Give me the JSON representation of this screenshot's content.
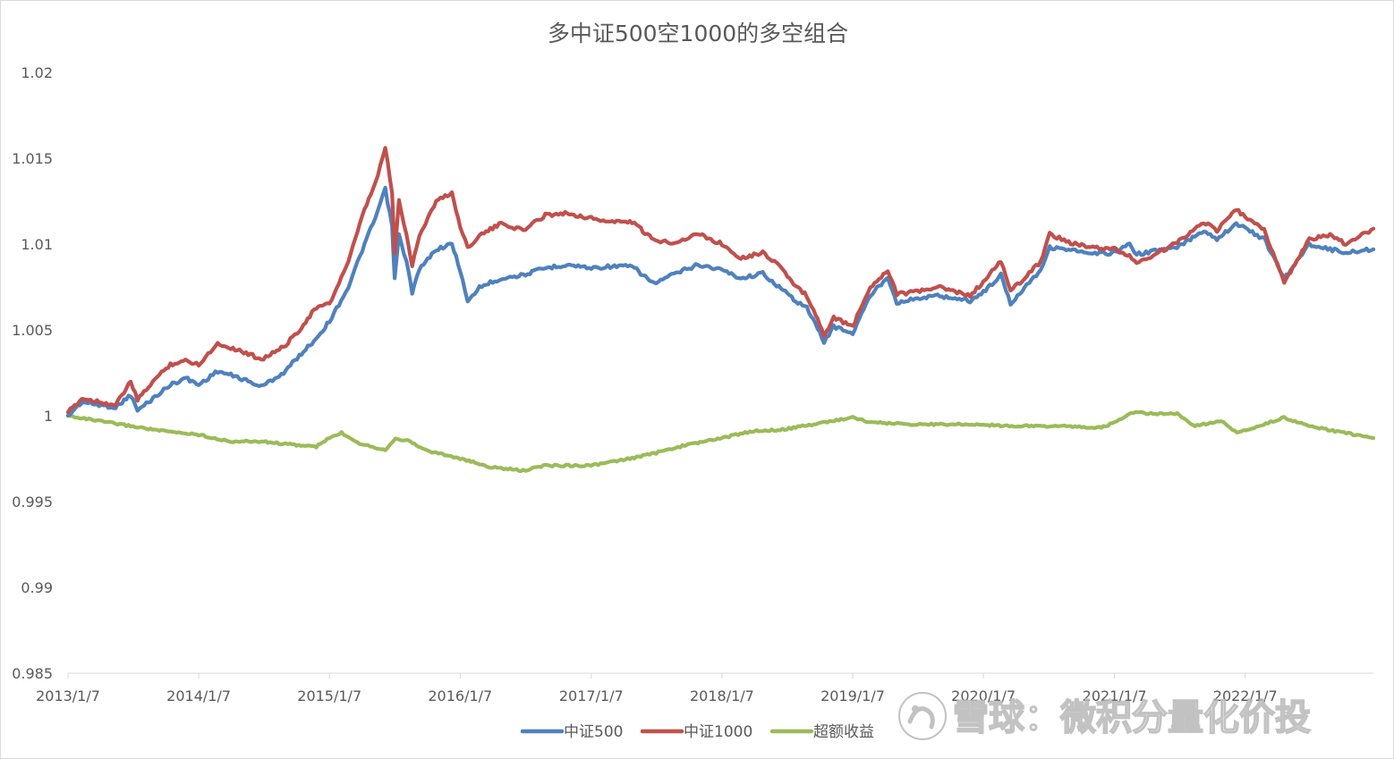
{
  "chart_data": {
    "type": "line",
    "title": "多中证500空1000的多空组合",
    "xlabel": "",
    "ylabel": "",
    "ylim": [
      0.985,
      1.02
    ],
    "yticks": [
      "1.02",
      "1.015",
      "1.01",
      "1.005",
      "1",
      "0.995",
      "0.99",
      "0.985"
    ],
    "xlim": [
      "2013-01-07",
      "2022-12-31"
    ],
    "xticks": [
      "2013/1/7",
      "2014/1/7",
      "2015/1/7",
      "2016/1/7",
      "2017/1/7",
      "2018/1/7",
      "2019/1/7",
      "2020/1/7",
      "2021/1/7",
      "2022/1/7"
    ],
    "grid": false,
    "legend_position": "bottom",
    "series": [
      {
        "name": "中证500",
        "color": "#4f81bd",
        "points": [
          [
            "2013-01-07",
            1.0
          ],
          [
            "2013-02-15",
            1.0008
          ],
          [
            "2013-04-10",
            1.0006
          ],
          [
            "2013-05-20",
            1.0005
          ],
          [
            "2013-07-01",
            1.0012
          ],
          [
            "2013-07-20",
            1.0003
          ],
          [
            "2013-09-01",
            1.001
          ],
          [
            "2013-10-20",
            1.0018
          ],
          [
            "2013-12-01",
            1.0022
          ],
          [
            "2014-01-07",
            1.0018
          ],
          [
            "2014-03-01",
            1.0026
          ],
          [
            "2014-05-01",
            1.0022
          ],
          [
            "2014-07-01",
            1.0017
          ],
          [
            "2014-09-01",
            1.0025
          ],
          [
            "2014-10-15",
            1.0035
          ],
          [
            "2014-12-01",
            1.0045
          ],
          [
            "2015-01-07",
            1.0055
          ],
          [
            "2015-03-01",
            1.0075
          ],
          [
            "2015-04-15",
            1.01
          ],
          [
            "2015-05-15",
            1.0115
          ],
          [
            "2015-06-12",
            1.0132
          ],
          [
            "2015-07-01",
            1.011
          ],
          [
            "2015-07-08",
            1.008
          ],
          [
            "2015-07-20",
            1.0105
          ],
          [
            "2015-08-10",
            1.009
          ],
          [
            "2015-08-26",
            1.0072
          ],
          [
            "2015-09-15",
            1.0085
          ],
          [
            "2015-11-01",
            1.0097
          ],
          [
            "2015-12-15",
            1.01
          ],
          [
            "2016-01-07",
            1.0085
          ],
          [
            "2016-01-28",
            1.0066
          ],
          [
            "2016-03-01",
            1.0075
          ],
          [
            "2016-05-01",
            1.008
          ],
          [
            "2016-07-01",
            1.0082
          ],
          [
            "2016-09-01",
            1.0086
          ],
          [
            "2016-11-01",
            1.0088
          ],
          [
            "2017-01-07",
            1.0086
          ],
          [
            "2017-03-01",
            1.0087
          ],
          [
            "2017-05-01",
            1.0087
          ],
          [
            "2017-07-01",
            1.0077
          ],
          [
            "2017-09-01",
            1.0083
          ],
          [
            "2017-11-01",
            1.0088
          ],
          [
            "2018-01-07",
            1.0085
          ],
          [
            "2018-03-01",
            1.008
          ],
          [
            "2018-05-01",
            1.0083
          ],
          [
            "2018-06-15",
            1.0075
          ],
          [
            "2018-08-01",
            1.0067
          ],
          [
            "2018-09-01",
            1.0063
          ],
          [
            "2018-10-19",
            1.0043
          ],
          [
            "2018-11-15",
            1.0052
          ],
          [
            "2019-01-07",
            1.0048
          ],
          [
            "2019-02-25",
            1.007
          ],
          [
            "2019-04-15",
            1.0081
          ],
          [
            "2019-05-10",
            1.0066
          ],
          [
            "2019-07-01",
            1.0068
          ],
          [
            "2019-09-01",
            1.007
          ],
          [
            "2019-12-01",
            1.0067
          ],
          [
            "2020-01-07",
            1.0072
          ],
          [
            "2020-02-25",
            1.0082
          ],
          [
            "2020-03-23",
            1.0065
          ],
          [
            "2020-05-01",
            1.0075
          ],
          [
            "2020-06-15",
            1.0085
          ],
          [
            "2020-07-10",
            1.0098
          ],
          [
            "2020-09-01",
            1.0097
          ],
          [
            "2020-11-01",
            1.0094
          ],
          [
            "2021-01-07",
            1.0095
          ],
          [
            "2021-02-18",
            1.01
          ],
          [
            "2021-03-10",
            1.0094
          ],
          [
            "2021-05-01",
            1.0096
          ],
          [
            "2021-07-01",
            1.0098
          ],
          [
            "2021-09-13",
            1.0108
          ],
          [
            "2021-10-20",
            1.0103
          ],
          [
            "2021-12-13",
            1.0112
          ],
          [
            "2022-01-07",
            1.0109
          ],
          [
            "2022-03-01",
            1.0103
          ],
          [
            "2022-04-26",
            1.008
          ],
          [
            "2022-06-01",
            1.009
          ],
          [
            "2022-07-05",
            1.01
          ],
          [
            "2022-09-01",
            1.0097
          ],
          [
            "2022-10-15",
            1.0095
          ],
          [
            "2022-12-31",
            1.0097
          ]
        ]
      },
      {
        "name": "中证1000",
        "color": "#c0504d",
        "points": [
          [
            "2013-01-07",
            1.0002
          ],
          [
            "2013-02-15",
            1.001
          ],
          [
            "2013-04-10",
            1.0008
          ],
          [
            "2013-05-20",
            1.0006
          ],
          [
            "2013-07-01",
            1.002
          ],
          [
            "2013-07-20",
            1.0009
          ],
          [
            "2013-09-01",
            1.002
          ],
          [
            "2013-10-20",
            1.003
          ],
          [
            "2013-12-01",
            1.0032
          ],
          [
            "2014-01-07",
            1.003
          ],
          [
            "2014-03-01",
            1.0042
          ],
          [
            "2014-05-01",
            1.0038
          ],
          [
            "2014-07-01",
            1.0033
          ],
          [
            "2014-09-01",
            1.004
          ],
          [
            "2014-10-15",
            1.005
          ],
          [
            "2014-12-01",
            1.0063
          ],
          [
            "2015-01-07",
            1.0065
          ],
          [
            "2015-03-01",
            1.009
          ],
          [
            "2015-04-15",
            1.012
          ],
          [
            "2015-05-15",
            1.0135
          ],
          [
            "2015-06-12",
            1.0156
          ],
          [
            "2015-07-01",
            1.013
          ],
          [
            "2015-07-08",
            1.0095
          ],
          [
            "2015-07-20",
            1.0125
          ],
          [
            "2015-08-10",
            1.0105
          ],
          [
            "2015-08-26",
            1.0088
          ],
          [
            "2015-09-15",
            1.0105
          ],
          [
            "2015-11-01",
            1.0125
          ],
          [
            "2015-12-15",
            1.013
          ],
          [
            "2016-01-07",
            1.011
          ],
          [
            "2016-01-28",
            1.0098
          ],
          [
            "2016-03-01",
            1.0105
          ],
          [
            "2016-05-01",
            1.0112
          ],
          [
            "2016-07-01",
            1.0108
          ],
          [
            "2016-09-01",
            1.0117
          ],
          [
            "2016-11-01",
            1.0118
          ],
          [
            "2017-01-07",
            1.0115
          ],
          [
            "2017-03-01",
            1.0113
          ],
          [
            "2017-05-01",
            1.0113
          ],
          [
            "2017-07-01",
            1.0102
          ],
          [
            "2017-09-01",
            1.0101
          ],
          [
            "2017-11-01",
            1.0106
          ],
          [
            "2018-01-07",
            1.01
          ],
          [
            "2018-03-01",
            1.0092
          ],
          [
            "2018-05-01",
            1.0095
          ],
          [
            "2018-06-15",
            1.0088
          ],
          [
            "2018-08-01",
            1.0075
          ],
          [
            "2018-09-01",
            1.007
          ],
          [
            "2018-10-19",
            1.0047
          ],
          [
            "2018-11-15",
            1.0057
          ],
          [
            "2019-01-07",
            1.0052
          ],
          [
            "2019-02-25",
            1.0075
          ],
          [
            "2019-04-15",
            1.0085
          ],
          [
            "2019-05-10",
            1.0071
          ],
          [
            "2019-07-01",
            1.0072
          ],
          [
            "2019-09-01",
            1.0075
          ],
          [
            "2019-12-01",
            1.007
          ],
          [
            "2020-01-07",
            1.0078
          ],
          [
            "2020-02-25",
            1.009
          ],
          [
            "2020-03-23",
            1.0073
          ],
          [
            "2020-05-01",
            1.008
          ],
          [
            "2020-06-15",
            1.009
          ],
          [
            "2020-07-10",
            1.0106
          ],
          [
            "2020-09-01",
            1.0101
          ],
          [
            "2020-11-01",
            1.0098
          ],
          [
            "2021-01-07",
            1.0097
          ],
          [
            "2021-02-18",
            1.0093
          ],
          [
            "2021-03-10",
            1.0089
          ],
          [
            "2021-05-01",
            1.0094
          ],
          [
            "2021-07-01",
            1.0101
          ],
          [
            "2021-09-13",
            1.0113
          ],
          [
            "2021-10-20",
            1.0108
          ],
          [
            "2021-12-13",
            1.012
          ],
          [
            "2022-01-07",
            1.0116
          ],
          [
            "2022-03-01",
            1.0108
          ],
          [
            "2022-04-26",
            1.0078
          ],
          [
            "2022-06-01",
            1.009
          ],
          [
            "2022-07-05",
            1.0103
          ],
          [
            "2022-09-01",
            1.0105
          ],
          [
            "2022-10-15",
            1.01
          ],
          [
            "2022-12-31",
            1.0109
          ]
        ]
      },
      {
        "name": "超额收益",
        "color": "#9bbb59",
        "points": [
          [
            "2013-01-07",
            1.0
          ],
          [
            "2013-04-01",
            0.9997
          ],
          [
            "2013-07-01",
            0.9994
          ],
          [
            "2013-10-01",
            0.9991
          ],
          [
            "2014-01-07",
            0.9989
          ],
          [
            "2014-04-01",
            0.9985
          ],
          [
            "2014-07-01",
            0.9985
          ],
          [
            "2014-10-01",
            0.9983
          ],
          [
            "2014-12-01",
            0.9982
          ],
          [
            "2015-01-07",
            0.9987
          ],
          [
            "2015-02-10",
            0.999
          ],
          [
            "2015-04-01",
            0.9984
          ],
          [
            "2015-06-12",
            0.998
          ],
          [
            "2015-07-10",
            0.9987
          ],
          [
            "2015-08-20",
            0.9985
          ],
          [
            "2015-10-01",
            0.998
          ],
          [
            "2016-01-07",
            0.9975
          ],
          [
            "2016-04-01",
            0.997
          ],
          [
            "2016-07-01",
            0.9968
          ],
          [
            "2016-09-01",
            0.9971
          ],
          [
            "2017-01-07",
            0.9971
          ],
          [
            "2017-04-01",
            0.9974
          ],
          [
            "2017-07-01",
            0.9978
          ],
          [
            "2017-10-01",
            0.9983
          ],
          [
            "2018-01-07",
            0.9987
          ],
          [
            "2018-04-01",
            0.9991
          ],
          [
            "2018-07-01",
            0.9992
          ],
          [
            "2018-10-15",
            0.9996
          ],
          [
            "2019-01-07",
            0.9999
          ],
          [
            "2019-03-01",
            0.9996
          ],
          [
            "2019-07-01",
            0.9995
          ],
          [
            "2019-12-01",
            0.9995
          ],
          [
            "2020-04-01",
            0.9994
          ],
          [
            "2020-08-01",
            0.9994
          ],
          [
            "2020-12-01",
            0.9993
          ],
          [
            "2021-01-07",
            0.9996
          ],
          [
            "2021-03-01",
            1.0002
          ],
          [
            "2021-05-01",
            1.0001
          ],
          [
            "2021-07-01",
            1.0001
          ],
          [
            "2021-08-20",
            0.9994
          ],
          [
            "2021-11-01",
            0.9997
          ],
          [
            "2021-12-15",
            0.999
          ],
          [
            "2022-02-01",
            0.9993
          ],
          [
            "2022-04-26",
            0.9999
          ],
          [
            "2022-07-01",
            0.9994
          ],
          [
            "2022-12-31",
            0.9987
          ]
        ]
      }
    ]
  },
  "watermark": {
    "text": "雪球：微积分量化价投",
    "icon": "snowball-logo-icon"
  }
}
